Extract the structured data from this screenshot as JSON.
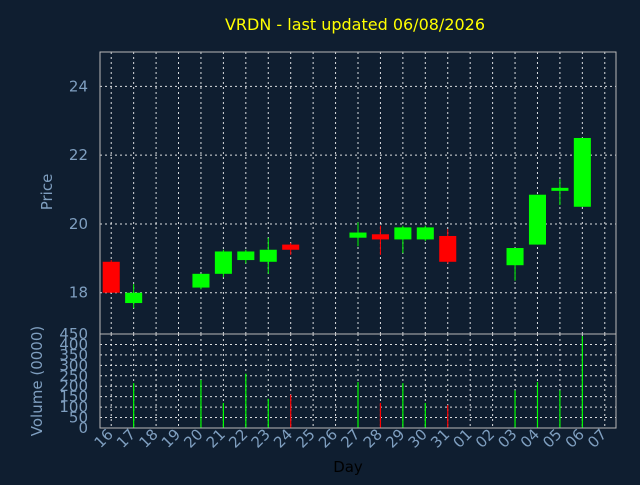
{
  "chart_data": [
    {
      "type": "candlestick",
      "title": "VRDN - last updated 06/08/2026",
      "ylabel": "Price",
      "xlabel": "",
      "ylim": [
        16.8,
        25.0
      ],
      "yticks": [
        18,
        20,
        22,
        24
      ],
      "grid": true,
      "up_color": "#00ff00",
      "down_color": "#ff0000",
      "candles": [
        {
          "day": "16",
          "open": 18.9,
          "high": 18.95,
          "low": 18.0,
          "close": 18.0
        },
        {
          "day": "17",
          "open": 17.7,
          "high": 18.25,
          "low": 17.55,
          "close": 18.0
        },
        {
          "day": "18",
          "open": null,
          "high": null,
          "low": null,
          "close": null
        },
        {
          "day": "19",
          "open": null,
          "high": null,
          "low": null,
          "close": null
        },
        {
          "day": "20",
          "open": 18.15,
          "high": 18.55,
          "low": 18.1,
          "close": 18.55
        },
        {
          "day": "21",
          "open": 18.55,
          "high": 19.25,
          "low": 18.45,
          "close": 19.2
        },
        {
          "day": "22",
          "open": 18.95,
          "high": 19.25,
          "low": 18.85,
          "close": 19.2
        },
        {
          "day": "23",
          "open": 18.9,
          "high": 19.6,
          "low": 18.55,
          "close": 19.25
        },
        {
          "day": "24",
          "open": 19.4,
          "high": 19.45,
          "low": 19.1,
          "close": 19.25
        },
        {
          "day": "25",
          "open": null,
          "high": null,
          "low": null,
          "close": null
        },
        {
          "day": "26",
          "open": null,
          "high": null,
          "low": null,
          "close": null
        },
        {
          "day": "27",
          "open": 19.6,
          "high": 20.05,
          "low": 19.35,
          "close": 19.75
        },
        {
          "day": "28",
          "open": 19.7,
          "high": 19.95,
          "low": 19.1,
          "close": 19.55
        },
        {
          "day": "29",
          "open": 19.55,
          "high": 19.95,
          "low": 19.15,
          "close": 19.9
        },
        {
          "day": "30",
          "open": 19.55,
          "high": 19.95,
          "low": 19.5,
          "close": 19.9
        },
        {
          "day": "31",
          "open": 19.65,
          "high": 19.85,
          "low": 18.85,
          "close": 18.9
        },
        {
          "day": "01",
          "open": null,
          "high": null,
          "low": null,
          "close": null
        },
        {
          "day": "02",
          "open": null,
          "high": null,
          "low": null,
          "close": null
        },
        {
          "day": "03",
          "open": 18.8,
          "high": 19.3,
          "low": 18.35,
          "close": 19.3
        },
        {
          "day": "04",
          "open": 19.4,
          "high": 20.85,
          "low": 19.4,
          "close": 20.85
        },
        {
          "day": "05",
          "open": 21.0,
          "high": 21.3,
          "low": 20.55,
          "close": 21.05
        },
        {
          "day": "06",
          "open": 20.5,
          "high": 22.5,
          "low": 20.5,
          "close": 22.5
        },
        {
          "day": "07",
          "open": null,
          "high": null,
          "low": null,
          "close": null
        }
      ]
    },
    {
      "type": "bar",
      "ylabel": "Volume (0000)",
      "xlabel": "Day",
      "ylim": [
        0,
        450
      ],
      "yticks": [
        0,
        50,
        100,
        150,
        200,
        250,
        300,
        350,
        400,
        450
      ],
      "grid": true,
      "categories": [
        "16",
        "17",
        "18",
        "19",
        "20",
        "21",
        "22",
        "23",
        "24",
        "25",
        "26",
        "27",
        "28",
        "29",
        "30",
        "31",
        "01",
        "02",
        "03",
        "04",
        "05",
        "06",
        "07"
      ],
      "values": [
        0,
        215,
        0,
        0,
        230,
        120,
        260,
        140,
        160,
        0,
        0,
        220,
        120,
        215,
        120,
        110,
        0,
        0,
        180,
        220,
        180,
        440,
        0
      ],
      "colors": [
        "",
        "#00ff00",
        "",
        "",
        "#00ff00",
        "#00ff00",
        "#00ff00",
        "#00ff00",
        "#ff0000",
        "",
        "",
        "#00ff00",
        "#ff0000",
        "#00ff00",
        "#00ff00",
        "#ff0000",
        "",
        "",
        "#00ff00",
        "#00ff00",
        "#00ff00",
        "#00ff00",
        ""
      ]
    }
  ]
}
